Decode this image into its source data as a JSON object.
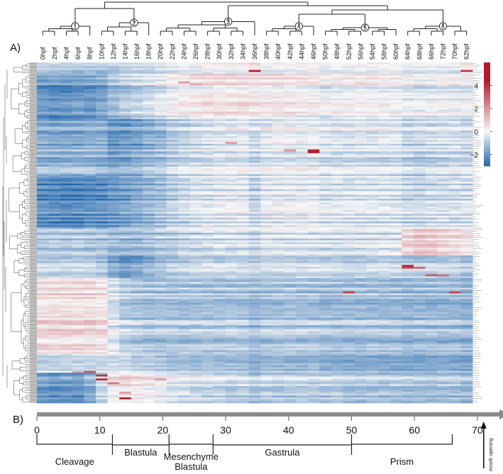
{
  "panel_labels": {
    "a": "A)",
    "b": "B)"
  },
  "chart_data": [
    {
      "type": "heatmap",
      "panel": "A)",
      "columns": [
        "0hpf",
        "2hpf",
        "4hpf",
        "6hpf",
        "8hpf",
        "10hpf",
        "12hpf",
        "14hpf",
        "16hpf",
        "18hpf",
        "20hpf",
        "22hpf",
        "24hpf",
        "26hpf",
        "28hpf",
        "30hpf",
        "32hpf",
        "34hpf",
        "36hpf",
        "38hpf",
        "40hpf",
        "42hpf",
        "44hpf",
        "46hpf",
        "50hpf",
        "48hpf",
        "52hpf",
        "56hpf",
        "54hpf",
        "58hpf",
        "60hpf",
        "64hpf",
        "68hpf",
        "66hpf",
        "72hpf",
        "70hpf",
        "62hpf"
      ],
      "column_clusters": [
        {
          "label": "1",
          "first": 0,
          "last": 4
        },
        {
          "label": "2",
          "first": 5,
          "last": 9
        },
        {
          "label": "3",
          "first": 10,
          "last": 18
        },
        {
          "label": "4",
          "first": 19,
          "last": 23
        },
        {
          "label": "5",
          "first": 24,
          "last": 30
        },
        {
          "label": "6",
          "first": 31,
          "last": 36
        }
      ],
      "colorbar": {
        "min": -3,
        "max": 6,
        "ticks": [
          "4",
          "2",
          "0",
          "−2"
        ],
        "tick_values": [
          4,
          2,
          0,
          -2
        ],
        "colors": {
          "low": "#2166ac",
          "mid": "#f7f7f7",
          "high": "#b2182b"
        }
      },
      "row_count": 180,
      "row_blocks": [
        {
          "rows": 6,
          "profile": [
            -0.8,
            -0.9,
            -0.9,
            -0.9,
            -0.8,
            -0.9,
            -1.0,
            -0.8,
            -0.7,
            -0.6,
            -0.5,
            -0.3,
            -0.2,
            -0.1,
            0.0,
            0.1,
            0.1,
            0.2,
            0.3,
            -0.1,
            0.0,
            0.0,
            0.1,
            0.1,
            -0.2,
            -0.1,
            -0.1,
            0.0,
            0.0,
            0.0,
            0.0,
            -0.2,
            -0.2,
            -0.1,
            -0.1,
            -0.1,
            0.2
          ]
        },
        {
          "rows": 24,
          "profile": [
            -2.0,
            -2.1,
            -2.1,
            -2.0,
            -2.0,
            -1.7,
            -1.3,
            -1.0,
            -0.8,
            -0.6,
            -0.4,
            -0.1,
            0.1,
            0.2,
            0.3,
            0.3,
            0.3,
            0.4,
            0.3,
            0.2,
            0.2,
            0.2,
            0.1,
            0.1,
            -0.2,
            -0.1,
            0.0,
            0.0,
            0.0,
            0.0,
            0.0,
            -0.3,
            -0.3,
            -0.2,
            -0.2,
            -0.2,
            -0.2
          ]
        },
        {
          "rows": 16,
          "profile": [
            -1.5,
            -1.6,
            -1.6,
            -1.6,
            -1.5,
            -1.5,
            -1.9,
            -1.9,
            -1.7,
            -1.5,
            -1.3,
            -1.0,
            -0.8,
            -0.6,
            -0.5,
            -0.3,
            -0.2,
            -0.2,
            -0.6,
            -0.2,
            -0.1,
            -0.1,
            -0.1,
            -0.1,
            -0.3,
            -0.3,
            -0.3,
            -0.3,
            -0.3,
            -0.2,
            -0.2,
            -0.6,
            -0.6,
            -0.5,
            -0.4,
            -0.4,
            -0.5
          ]
        },
        {
          "rows": 14,
          "profile": [
            -1.3,
            -1.3,
            -1.3,
            -1.3,
            -1.3,
            -1.5,
            -1.7,
            -1.6,
            -1.4,
            -1.2,
            -1.0,
            -0.8,
            -0.6,
            -0.5,
            -0.4,
            -0.3,
            -0.3,
            -0.3,
            -0.6,
            -0.3,
            -0.3,
            -0.3,
            -0.3,
            -0.3,
            -0.5,
            -0.5,
            -0.5,
            -0.5,
            -0.5,
            -0.5,
            -0.5,
            -0.7,
            -0.8,
            -0.7,
            -0.7,
            -0.6,
            -0.6
          ]
        },
        {
          "rows": 28,
          "profile": [
            -2.2,
            -2.3,
            -2.3,
            -2.3,
            -2.2,
            -2.2,
            -2.0,
            -1.8,
            -1.6,
            -1.4,
            -1.2,
            -0.9,
            -0.7,
            -0.5,
            -0.4,
            -0.3,
            -0.3,
            -0.3,
            -0.8,
            -0.3,
            -0.2,
            -0.2,
            -0.2,
            -0.2,
            -0.4,
            -0.4,
            -0.4,
            -0.4,
            -0.4,
            -0.4,
            -0.4,
            -0.7,
            -0.7,
            -0.6,
            -0.6,
            -0.6,
            -0.5
          ]
        },
        {
          "rows": 14,
          "profile": [
            -1.0,
            -1.0,
            -1.0,
            -1.0,
            -1.0,
            -1.1,
            -1.3,
            -1.4,
            -1.3,
            -1.2,
            -1.0,
            -0.9,
            -0.8,
            -0.7,
            -0.6,
            -0.5,
            -0.5,
            -0.5,
            -0.8,
            -0.5,
            -0.5,
            -0.5,
            -0.5,
            -0.5,
            -0.6,
            -0.6,
            -0.5,
            -0.5,
            -0.4,
            -0.4,
            -0.4,
            0.6,
            0.9,
            0.8,
            0.6,
            0.4,
            0.2
          ]
        },
        {
          "rows": 12,
          "profile": [
            -0.9,
            -0.9,
            -0.9,
            -0.9,
            -0.9,
            -1.1,
            -1.8,
            -2.1,
            -1.9,
            -1.6,
            -1.3,
            -1.1,
            -1.0,
            -0.9,
            -0.8,
            -0.8,
            -0.8,
            -0.8,
            -1.0,
            -0.8,
            -0.8,
            -0.8,
            -0.8,
            -0.8,
            -0.9,
            -0.9,
            -0.9,
            -0.9,
            -0.9,
            -0.9,
            -0.9,
            -1.0,
            -1.0,
            -1.0,
            -1.0,
            -1.0,
            -1.2
          ]
        },
        {
          "rows": 40,
          "profile": [
            0.6,
            0.6,
            0.6,
            0.6,
            0.6,
            0.4,
            -0.3,
            -0.8,
            -0.9,
            -1.0,
            -1.0,
            -1.0,
            -1.0,
            -1.0,
            -1.0,
            -1.0,
            -1.0,
            -1.0,
            -1.2,
            -1.0,
            -1.0,
            -1.0,
            -1.0,
            -1.0,
            -1.1,
            -1.1,
            -1.1,
            -1.1,
            -1.1,
            -1.1,
            -1.1,
            -1.2,
            -1.2,
            -1.2,
            -1.2,
            -1.2,
            -1.3
          ]
        },
        {
          "rows": 10,
          "profile": [
            -0.4,
            -0.4,
            -0.4,
            -0.4,
            -0.4,
            -0.4,
            -0.2,
            -0.3,
            -0.5,
            -0.6,
            -0.7,
            -0.8,
            -0.8,
            -0.9,
            -0.9,
            -0.9,
            -0.9,
            -0.9,
            -1.2,
            -1.0,
            -1.0,
            -1.0,
            -1.0,
            -1.0,
            -1.2,
            -1.2,
            -1.3,
            -1.3,
            -1.3,
            -1.3,
            -1.3,
            -1.3,
            -1.4,
            -1.3,
            -1.3,
            -1.3,
            -1.4
          ]
        },
        {
          "rows": 16,
          "profile": [
            -1.8,
            -1.9,
            -1.9,
            -1.9,
            -1.4,
            -0.6,
            0.3,
            0.6,
            0.4,
            0.2,
            0.0,
            -0.2,
            -0.3,
            -0.4,
            -0.5,
            -0.6,
            -0.6,
            -0.6,
            -0.9,
            -0.7,
            -0.7,
            -0.7,
            -0.7,
            -0.7,
            -0.8,
            -0.8,
            -0.9,
            -0.9,
            -0.9,
            -0.9,
            -0.9,
            -1.0,
            -1.0,
            -1.0,
            -1.0,
            -1.0,
            -1.1
          ]
        }
      ],
      "highlights": [
        {
          "row": 4,
          "col": 18,
          "value": 4.8
        },
        {
          "row": 4,
          "col": 36,
          "value": 4.0
        },
        {
          "row": 10,
          "col": 12,
          "value": 1.8
        },
        {
          "row": 11,
          "col": 13,
          "value": 1.6
        },
        {
          "row": 42,
          "col": 16,
          "value": 1.8
        },
        {
          "row": 46,
          "col": 21,
          "value": 2.0
        },
        {
          "row": 46,
          "col": 23,
          "value": 4.6
        },
        {
          "row": 47,
          "col": 23,
          "value": 4.2
        },
        {
          "row": 107,
          "col": 31,
          "value": 4.2
        },
        {
          "row": 108,
          "col": 31,
          "value": 3.6
        },
        {
          "row": 108,
          "col": 32,
          "value": 3.0
        },
        {
          "row": 112,
          "col": 33,
          "value": 3.2
        },
        {
          "row": 112,
          "col": 34,
          "value": 2.8
        },
        {
          "row": 121,
          "col": 26,
          "value": 3.8
        },
        {
          "row": 121,
          "col": 35,
          "value": 3.6
        },
        {
          "row": 163,
          "col": 3,
          "value": 1.6
        },
        {
          "row": 163,
          "col": 4,
          "value": 3.2
        },
        {
          "row": 165,
          "col": 5,
          "value": 4.0
        },
        {
          "row": 167,
          "col": 5,
          "value": 4.2
        },
        {
          "row": 167,
          "col": 10,
          "value": 1.8
        },
        {
          "row": 169,
          "col": 6,
          "value": 2.6
        },
        {
          "row": 174,
          "col": 7,
          "value": 1.8
        },
        {
          "row": 177,
          "col": 7,
          "value": 4.8
        }
      ]
    },
    {
      "type": "timeline",
      "panel": "B)",
      "axis": {
        "min": 0,
        "max": 75,
        "ticks": [
          0,
          10,
          20,
          30,
          40,
          50,
          60,
          70
        ],
        "tick_labels": [
          "0",
          "10",
          "20",
          "30",
          "40",
          "50",
          "60",
          "70"
        ]
      },
      "stages": [
        {
          "label": "Cleavage",
          "start": 0,
          "end": 12
        },
        {
          "label": "Blastula",
          "start": 12,
          "end": 21
        },
        {
          "label": "Mesenchyme\nBlastula",
          "start": 21,
          "end": 28
        },
        {
          "label": "Gastrula",
          "start": 28,
          "end": 50
        },
        {
          "label": "Prism",
          "start": 50,
          "end": 66
        }
      ],
      "event": {
        "label": "mouth opening",
        "x": 71
      }
    }
  ]
}
